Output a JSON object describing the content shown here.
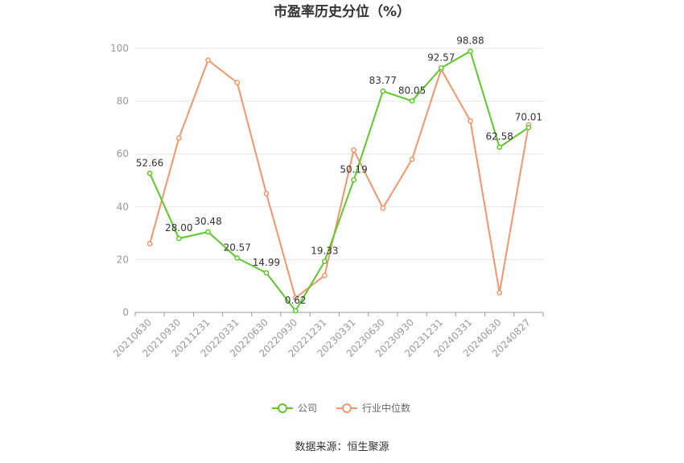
{
  "chart_data": {
    "type": "line",
    "title": "市盈率历史分位（%）",
    "categories": [
      "20210630",
      "20210930",
      "20211231",
      "20220331",
      "20220630",
      "20220930",
      "20221231",
      "20230331",
      "20230630",
      "20230930",
      "20231231",
      "20240331",
      "20240630",
      "20240827"
    ],
    "ylim": [
      0,
      100
    ],
    "yticks": [
      0,
      20,
      40,
      60,
      80,
      100
    ],
    "grid": true,
    "legend_position": "bottom-center",
    "series": [
      {
        "name": "公司",
        "color": "#5cc929",
        "values": [
          52.66,
          28.0,
          30.48,
          20.57,
          14.99,
          0.62,
          19.33,
          50.19,
          83.77,
          80.05,
          92.57,
          98.88,
          62.58,
          70.01
        ],
        "labels": [
          "52.66",
          "28.00",
          "30.48",
          "20.57",
          "14.99",
          "0.62",
          "19.33",
          "50.19",
          "83.77",
          "80.05",
          "92.57",
          "98.88",
          "62.58",
          "70.01"
        ]
      },
      {
        "name": "行业中位数",
        "color": "#f4956b",
        "values": [
          26,
          66,
          95.5,
          87,
          45,
          5.5,
          14,
          61.5,
          39.5,
          58,
          92,
          72.5,
          7.5,
          71
        ]
      }
    ]
  },
  "source": "数据来源：恒生聚源"
}
